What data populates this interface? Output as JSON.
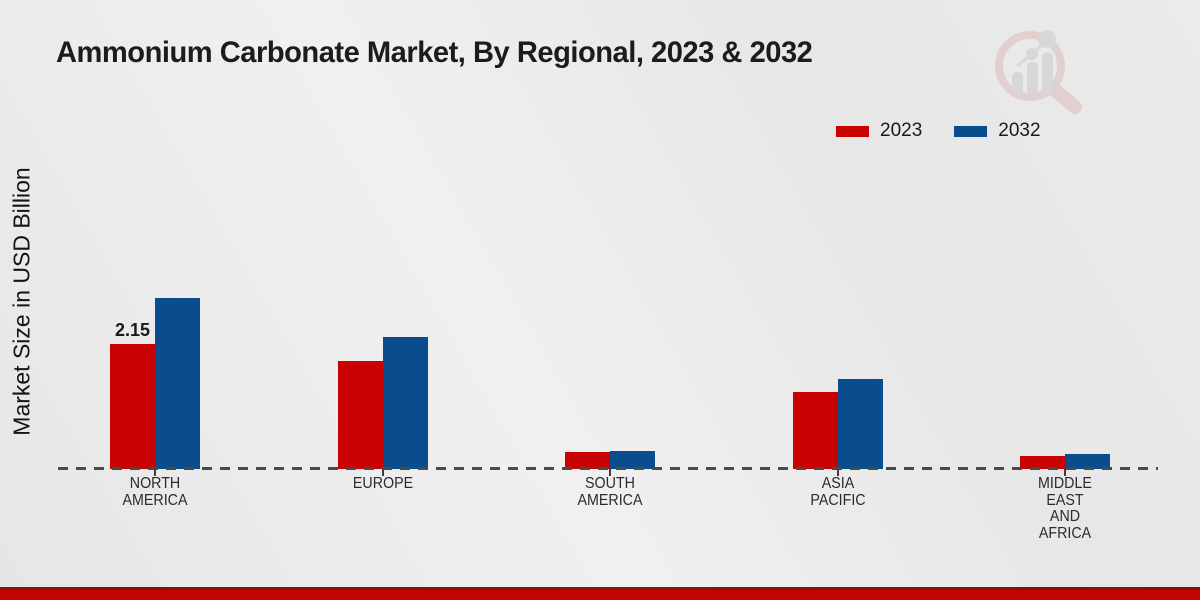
{
  "title": "Ammonium Carbonate Market, By Regional, 2023 & 2032",
  "y_axis_label": "Market Size in USD Billion",
  "legend": {
    "items": [
      {
        "label": "2023",
        "color": "#c80202"
      },
      {
        "label": "2032",
        "color": "#0a4d8c"
      }
    ],
    "position": "top-right"
  },
  "watermark_icon": "market-research-future-logo",
  "colors": {
    "series_2023": "#c80202",
    "series_2032": "#0a4d8c",
    "baseline_dash": "#4a4a4a",
    "footer_bar": "#c20404",
    "footer_bar_edge": "#8a1208",
    "background": "#eaeaea",
    "text": "#1a1a1a"
  },
  "chart_data": {
    "type": "bar",
    "title": "Ammonium Carbonate Market, By Regional, 2023 & 2032",
    "xlabel": "",
    "ylabel": "Market Size in USD Billion",
    "categories": [
      "NORTH AMERICA",
      "EUROPE",
      "SOUTH AMERICA",
      "ASIA PACIFIC",
      "MIDDLE EAST AND AFRICA"
    ],
    "category_label_lines": [
      [
        "NORTH",
        "AMERICA"
      ],
      [
        "EUROPE"
      ],
      [
        "SOUTH",
        "AMERICA"
      ],
      [
        "ASIA",
        "PACIFIC"
      ],
      [
        "MIDDLE",
        "EAST",
        "AND",
        "AFRICA"
      ]
    ],
    "series": [
      {
        "name": "2023",
        "color": "#c80202",
        "values": [
          2.15,
          1.85,
          0.29,
          1.33,
          0.23
        ]
      },
      {
        "name": "2032",
        "color": "#0a4d8c",
        "values": [
          2.95,
          2.27,
          0.31,
          1.55,
          0.26
        ]
      }
    ],
    "annotations": [
      {
        "category_index": 0,
        "series_index": 0,
        "text": "2.15"
      }
    ],
    "ylim": [
      0,
      3.2
    ],
    "grid": false,
    "y_axis_ticks_visible": false,
    "baseline_style": "dashed",
    "legend_position": "top-right"
  }
}
